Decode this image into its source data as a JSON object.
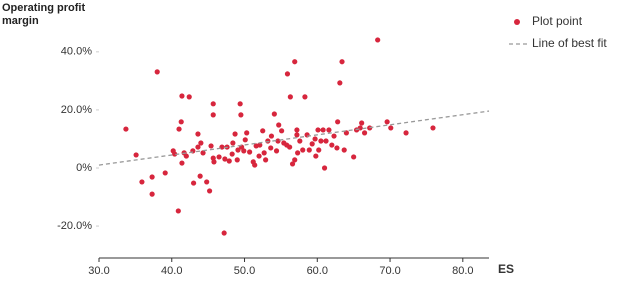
{
  "chart_data": {
    "type": "scatter",
    "x_label": "ES",
    "y_label": "Operating profit margin",
    "xlim": [
      30,
      83.6
    ],
    "ylim": [
      -31,
      52
    ],
    "xticks": [
      {
        "value": 30,
        "label": "30.0"
      },
      {
        "value": 40,
        "label": "40.0"
      },
      {
        "value": 50,
        "label": "50.0"
      },
      {
        "value": 60,
        "label": "60.0"
      },
      {
        "value": 70,
        "label": "70.0"
      },
      {
        "value": 80,
        "label": "80.0"
      }
    ],
    "yticks": [
      {
        "value": -20,
        "label": "-20.0%"
      },
      {
        "value": 0,
        "label": "0%"
      },
      {
        "value": 20,
        "label": "20.0%"
      },
      {
        "value": 40,
        "label": "40.0%"
      }
    ],
    "series": [
      {
        "name": "Plot point",
        "color": "#d7263d",
        "x": [
          33.7,
          35.1,
          35.9,
          38.0,
          37.3,
          37.3,
          39.1,
          40.2,
          40.4,
          40.9,
          41.0,
          41.3,
          41.4,
          42.4,
          41.4,
          41.7,
          42.0,
          42.9,
          43.0,
          43.6,
          43.6,
          43.9,
          44.0,
          44.3,
          44.8,
          45.2,
          45.4,
          45.7,
          45.7,
          45.7,
          45.8,
          46.5,
          46.9,
          47.2,
          47.3,
          47.6,
          47.9,
          48.3,
          48.4,
          48.7,
          49.0,
          49.1,
          49.4,
          49.5,
          49.6,
          49.9,
          50.1,
          50.3,
          50.7,
          51.2,
          51.4,
          51.6,
          52.0,
          52.1,
          52.5,
          52.7,
          52.9,
          53.2,
          53.6,
          53.7,
          54.1,
          54.4,
          54.6,
          54.7,
          55.1,
          55.4,
          55.8,
          55.9,
          56.2,
          56.3,
          56.9,
          56.6,
          56.9,
          57.2,
          57.2,
          57.3,
          57.6,
          58.0,
          58.3,
          58.6,
          58.9,
          59.3,
          59.7,
          59.8,
          60.1,
          60.2,
          60.5,
          60.8,
          61.0,
          61.2,
          61.6,
          62.0,
          62.3,
          62.7,
          62.8,
          63.1,
          63.4,
          63.7,
          64.0,
          65.0,
          65.4,
          65.9,
          66.1,
          66.5,
          67.2,
          68.3,
          69.6,
          70.1,
          72.2,
          75.9
        ],
        "values": [
          13.4,
          4.5,
          -4.8,
          33.1,
          -3.1,
          -9.0,
          -1.7,
          5.9,
          4.8,
          -14.8,
          13.4,
          15.9,
          24.8,
          24.5,
          1.7,
          5.2,
          4.1,
          5.9,
          -5.2,
          7.2,
          11.7,
          -2.8,
          8.6,
          5.2,
          -4.8,
          -7.9,
          7.6,
          22.1,
          18.3,
          3.4,
          2.1,
          3.8,
          7.2,
          -22.4,
          3.1,
          7.2,
          2.4,
          4.8,
          8.6,
          11.7,
          2.8,
          6.2,
          22.1,
          18.3,
          7.2,
          5.9,
          9.7,
          12.1,
          5.5,
          2.1,
          1.0,
          7.6,
          4.1,
          7.9,
          12.8,
          5.2,
          2.8,
          9.3,
          6.9,
          11.0,
          18.6,
          5.9,
          9.3,
          14.8,
          12.8,
          8.6,
          7.9,
          32.4,
          7.2,
          24.5,
          36.6,
          1.4,
          2.8,
          13.1,
          11.4,
          5.2,
          9.3,
          6.2,
          24.5,
          11.4,
          6.2,
          8.3,
          10.0,
          4.1,
          13.1,
          6.2,
          9.3,
          13.1,
          0.0,
          9.3,
          13.1,
          7.9,
          11.0,
          6.9,
          15.9,
          29.3,
          36.6,
          6.2,
          12.1,
          3.8,
          13.1,
          13.8,
          15.5,
          12.1,
          13.8,
          44.1,
          15.9,
          13.8,
          12.1,
          13.8
        ]
      },
      {
        "name": "Line of best fit",
        "color": "#999999",
        "x": [
          30,
          83.6
        ],
        "values": [
          1.0,
          19.6
        ]
      }
    ],
    "legend": "upper-right-outside"
  }
}
